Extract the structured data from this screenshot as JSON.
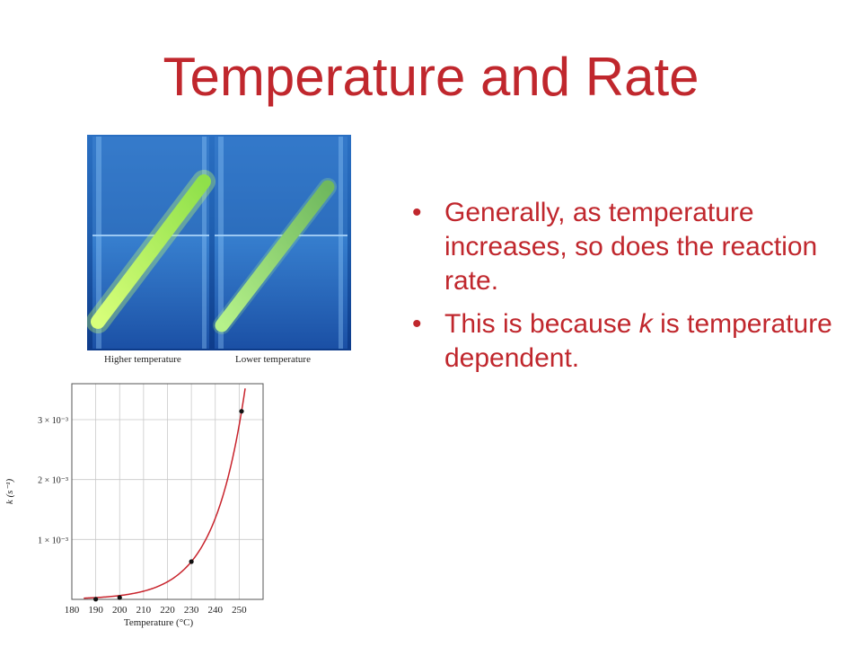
{
  "slide": {
    "title": "Temperature and Rate",
    "accent_color": "#c0272d"
  },
  "photo": {
    "caption_left": "Higher temperature",
    "caption_right": "Lower temperature"
  },
  "bullets": [
    {
      "pre": "Generally, as temperature increases, so does the reaction rate.",
      "ital": "",
      "post": ""
    },
    {
      "pre": "This is because ",
      "ital": "k",
      "post": " is temperature dependent."
    }
  ],
  "chart_data": {
    "type": "line",
    "xlabel": "Temperature (°C)",
    "ylabel": "k (s⁻¹)",
    "x_ticks": [
      180,
      190,
      200,
      210,
      220,
      230,
      240,
      250
    ],
    "y_ticks": [
      {
        "value": 0.001,
        "label": "1 × 10⁻³"
      },
      {
        "value": 0.002,
        "label": "2 × 10⁻³"
      },
      {
        "value": 0.003,
        "label": "3 × 10⁻³"
      }
    ],
    "xlim": [
      180,
      260
    ],
    "ylim": [
      0,
      0.0036
    ],
    "grid": true,
    "points": [
      {
        "x": 190,
        "y": 3e-06
      },
      {
        "x": 200,
        "y": 3e-05
      },
      {
        "x": 230,
        "y": 0.00063
      },
      {
        "x": 251,
        "y": 0.00314
      }
    ],
    "curve_color": "#c8232c"
  }
}
